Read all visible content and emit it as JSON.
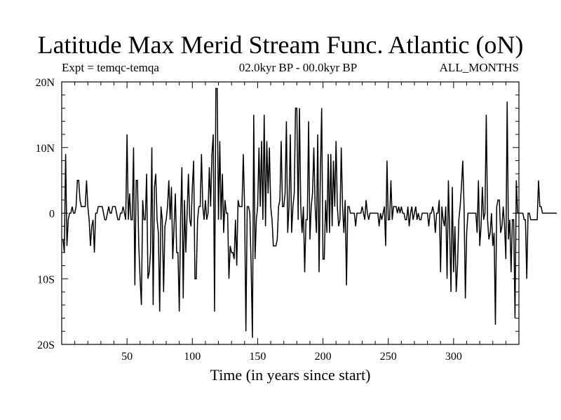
{
  "header": {
    "title": "Latitude Max Merid Stream Func. Atlantic (oN)",
    "expt": "Expt = temqc-temqa",
    "period": "02.0kyr BP - 00.0kyr BP",
    "months": "ALL_MONTHS"
  },
  "chart_data": {
    "type": "line",
    "title": "Latitude Max Merid Stream Func. Atlantic (oN)",
    "xlabel": "Time (in years since start)",
    "ylabel": "",
    "xlim": [
      0,
      350
    ],
    "ylim": [
      -20,
      20
    ],
    "x_ticks": [
      50,
      100,
      150,
      200,
      250,
      300
    ],
    "x_tick_labels": [
      "50",
      "100",
      "150",
      "200",
      "250",
      "300"
    ],
    "y_ticks": [
      -20,
      -10,
      0,
      10,
      20
    ],
    "y_tick_labels": [
      "20S",
      "10S",
      "0",
      "10N",
      "20N"
    ],
    "grid": false,
    "line_color": "#000000",
    "series": [
      {
        "x_start": 1,
        "x_step": 1,
        "values": [
          -4,
          -6,
          9,
          -5,
          -1,
          0,
          0,
          1,
          0,
          0,
          1,
          5,
          5,
          2,
          1,
          1,
          1,
          1,
          5,
          1,
          -1,
          -5,
          -2,
          -1,
          -6,
          0,
          0,
          1,
          1,
          1,
          1,
          0,
          -1,
          -1,
          0,
          1,
          0,
          0,
          1,
          1,
          1,
          0,
          -1,
          -1,
          0,
          0,
          1,
          0,
          -1,
          12,
          -1,
          3,
          -1,
          -1,
          10,
          -11,
          5,
          5,
          -5,
          -10,
          -14,
          2,
          -1,
          -1,
          6,
          -10,
          -9,
          -6,
          10,
          -14,
          4,
          6,
          -1,
          -3,
          -15,
          1,
          -1,
          -12,
          -2,
          -1,
          1,
          5,
          -1,
          4,
          -7,
          -2,
          3,
          -6,
          -6,
          -15,
          -1,
          7,
          -13,
          2,
          -6,
          0,
          6,
          -1,
          -2,
          4,
          8,
          -10,
          -10,
          -1,
          1,
          1,
          9,
          1,
          -1,
          2,
          -1,
          0,
          7,
          1,
          9,
          12,
          -15,
          19,
          19,
          -1,
          11,
          -1,
          6,
          -3,
          2,
          0,
          0,
          -10,
          -5,
          -6,
          -6,
          -7,
          -1,
          -8,
          2,
          1,
          1,
          1,
          9,
          1,
          -18,
          1,
          1,
          0,
          -8,
          -19,
          15,
          -7,
          -1,
          1,
          10,
          1,
          11,
          -1,
          15,
          -2,
          11,
          3,
          10,
          1,
          -1,
          -5,
          -5,
          -5,
          -4,
          1,
          2,
          11,
          1,
          1,
          3,
          14,
          -3,
          1,
          12,
          -3,
          1,
          3,
          16,
          16,
          -1,
          16,
          1,
          -3,
          1,
          -9,
          -1,
          -1,
          14,
          -4,
          1,
          3,
          10,
          1,
          -3,
          12,
          -9,
          6,
          16,
          -7,
          -7,
          2,
          -3,
          9,
          -3,
          9,
          -2,
          8,
          1,
          11,
          1,
          -2,
          -1,
          10,
          1,
          -3,
          2,
          -11,
          1,
          1,
          0,
          0,
          0,
          0,
          -2,
          0,
          0,
          0,
          0,
          1,
          0,
          -1,
          2,
          0,
          -1,
          0,
          0,
          0,
          0,
          0,
          0,
          0,
          -2,
          0,
          -1,
          0,
          1,
          -5,
          8,
          -1,
          -1,
          5,
          -1,
          1,
          1,
          1,
          0,
          1,
          0,
          1,
          0,
          0,
          -1,
          -1,
          1,
          -2,
          0,
          1,
          -1,
          0,
          1,
          -1,
          0,
          -1,
          -1,
          0,
          0,
          0,
          0,
          0,
          -2,
          0,
          0,
          1,
          0,
          -3,
          0,
          0,
          2,
          -9,
          1,
          -1,
          -2,
          1,
          -10,
          5,
          -3,
          -12,
          4,
          -9,
          -2,
          -12,
          -8,
          -1,
          1,
          4,
          8,
          1,
          -13,
          -3,
          0,
          0,
          0,
          0,
          0,
          0,
          0,
          -3,
          5,
          -5,
          -2,
          4,
          -1,
          0,
          15,
          -1,
          -4,
          -3,
          0,
          -5,
          -3,
          -17,
          1,
          2,
          2,
          -3,
          -2,
          1,
          -2,
          -7,
          17,
          -4,
          -1,
          -9,
          -1,
          -1,
          -16,
          5,
          0,
          0,
          0,
          0,
          0,
          -1,
          -1,
          -10,
          0,
          0,
          -1,
          -1,
          -1,
          -1,
          -1,
          -1,
          5,
          1,
          1,
          0,
          0,
          0,
          0,
          0,
          0,
          0,
          0,
          0,
          0,
          0,
          0
        ]
      }
    ]
  }
}
